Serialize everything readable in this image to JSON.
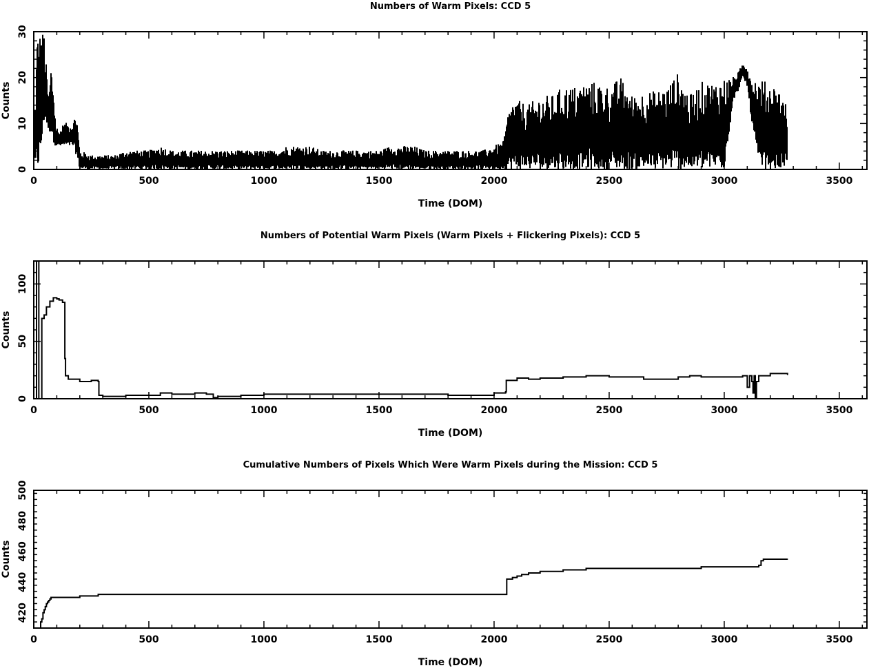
{
  "chart_data": [
    {
      "type": "line",
      "title": "Numbers of Warm Pixels: CCD 5",
      "xlabel": "Time (DOM)",
      "ylabel": "Counts",
      "xlim": [
        0,
        3620
      ],
      "ylim": [
        0,
        30
      ],
      "xticks": [
        0,
        500,
        1000,
        1500,
        2000,
        2500,
        3000,
        3500
      ],
      "yticks": [
        0,
        10,
        20,
        30
      ],
      "grid": false,
      "style": "dense-spikes",
      "series": [
        {
          "x": [
            0,
            15,
            25,
            35,
            45,
            55,
            65,
            75,
            85,
            95,
            110,
            130,
            150,
            170,
            185,
            200,
            250,
            300,
            350,
            400,
            450,
            500,
            550,
            600,
            650,
            700,
            750,
            800,
            850,
            900,
            950,
            1000,
            1050,
            1100,
            1150,
            1200,
            1250,
            1300,
            1350,
            1400,
            1450,
            1500,
            1550,
            1600,
            1650,
            1700,
            1750,
            1800,
            1850,
            1900,
            1950,
            2000,
            2040,
            2060,
            2080,
            2100,
            2150,
            2200,
            2250,
            2300,
            2350,
            2400,
            2450,
            2500,
            2550,
            2600,
            2650,
            2700,
            2750,
            2800,
            2850,
            2900,
            2950,
            3000,
            3040,
            3060,
            3080,
            3100,
            3120,
            3150,
            3180,
            3200,
            3230,
            3260,
            3275
          ],
          "hi": [
            5,
            30,
            30,
            30,
            30,
            22,
            15,
            23,
            19,
            10,
            8,
            10,
            10,
            10,
            13,
            4,
            3,
            3,
            3,
            4,
            4,
            4,
            5,
            4,
            4,
            4,
            4,
            4,
            4,
            4,
            4,
            4,
            4,
            5,
            5,
            5,
            4,
            4,
            4,
            4,
            4,
            4,
            5,
            5,
            5,
            4,
            4,
            4,
            4,
            4,
            4,
            5,
            6,
            12,
            15,
            15,
            14,
            16,
            16,
            18,
            18,
            19,
            19,
            18,
            20,
            16,
            17,
            17,
            18,
            21,
            16,
            19,
            19,
            20,
            20,
            21,
            23,
            23,
            20,
            20,
            19,
            19,
            18,
            16,
            13
          ],
          "lo": [
            0,
            0,
            0,
            5,
            10,
            10,
            8,
            8,
            6,
            5,
            5,
            5,
            5,
            5,
            3,
            0,
            0,
            0,
            0,
            0,
            0,
            0,
            0,
            0,
            0,
            0,
            0,
            0,
            0,
            0,
            0,
            0,
            0,
            0,
            0,
            0,
            0,
            0,
            0,
            0,
            0,
            0,
            0,
            0,
            0,
            0,
            0,
            0,
            0,
            0,
            0,
            0,
            0,
            0,
            0,
            0,
            0,
            0,
            0,
            0,
            0,
            0,
            0,
            0,
            0,
            0,
            0,
            0,
            0,
            0,
            0,
            0,
            0,
            0,
            15,
            17,
            20,
            18,
            10,
            0,
            0,
            0,
            0,
            0,
            0
          ]
        }
      ]
    },
    {
      "type": "line",
      "title": "Numbers of Potential Warm Pixels (Warm Pixels + Flickering Pixels): CCD 5",
      "xlabel": "Time (DOM)",
      "ylabel": "Counts",
      "xlim": [
        0,
        3620
      ],
      "ylim": [
        0,
        120
      ],
      "xticks": [
        0,
        500,
        1000,
        1500,
        2000,
        2500,
        3000,
        3500
      ],
      "yticks": [
        0,
        50,
        100
      ],
      "grid": false,
      "series": [
        {
          "x": [
            0,
            10,
            12,
            20,
            22,
            28,
            35,
            45,
            55,
            70,
            85,
            100,
            110,
            125,
            135,
            138,
            150,
            200,
            250,
            280,
            283,
            300,
            400,
            500,
            550,
            600,
            700,
            750,
            780,
            800,
            900,
            1000,
            1100,
            1200,
            1300,
            1400,
            1500,
            1600,
            1700,
            1800,
            1900,
            1950,
            2000,
            2050,
            2053,
            2100,
            2150,
            2200,
            2250,
            2300,
            2400,
            2500,
            2600,
            2650,
            2700,
            2750,
            2800,
            2850,
            2900,
            2950,
            3000,
            3050,
            3080,
            3100,
            3110,
            3120,
            3125,
            3130,
            3135,
            3140,
            3150,
            3200,
            3250,
            3275
          ],
          "y": [
            0,
            0,
            120,
            120,
            0,
            0,
            70,
            73,
            80,
            85,
            88,
            87,
            86,
            84,
            35,
            20,
            17,
            15,
            16,
            15,
            3,
            2,
            3,
            3,
            5,
            4,
            5,
            4,
            1,
            2,
            3,
            4,
            4,
            4,
            4,
            4,
            4,
            4,
            4,
            3,
            3,
            3,
            5,
            6,
            16,
            18,
            17,
            18,
            18,
            19,
            20,
            19,
            19,
            17,
            17,
            17,
            19,
            20,
            19,
            19,
            19,
            19,
            20,
            10,
            20,
            15,
            5,
            20,
            0,
            15,
            20,
            22,
            22,
            21
          ]
        }
      ]
    },
    {
      "type": "line",
      "title": "Cumulative Numbers of Pixels Which Were Warm Pixels during the Mission: CCD 5",
      "xlabel": "Time (DOM)",
      "ylabel": "Counts",
      "xlim": [
        0,
        3620
      ],
      "ylim": [
        410,
        500
      ],
      "xticks": [
        0,
        500,
        1000,
        1500,
        2000,
        2500,
        3000,
        3500
      ],
      "yticks": [
        420,
        440,
        460,
        480,
        500
      ],
      "grid": false,
      "series": [
        {
          "x": [
            20,
            30,
            35,
            40,
            45,
            50,
            55,
            60,
            65,
            70,
            75,
            200,
            280,
            2050,
            2055,
            2080,
            2100,
            2120,
            2150,
            2200,
            2300,
            2400,
            2900,
            3150,
            3160,
            3170,
            3275
          ],
          "y": [
            410,
            414,
            416,
            420,
            422,
            424,
            426,
            427,
            428,
            429,
            430,
            431,
            432,
            432,
            442,
            443,
            444,
            445,
            446,
            447,
            448,
            449,
            450,
            451,
            454,
            455,
            455
          ]
        }
      ]
    }
  ]
}
